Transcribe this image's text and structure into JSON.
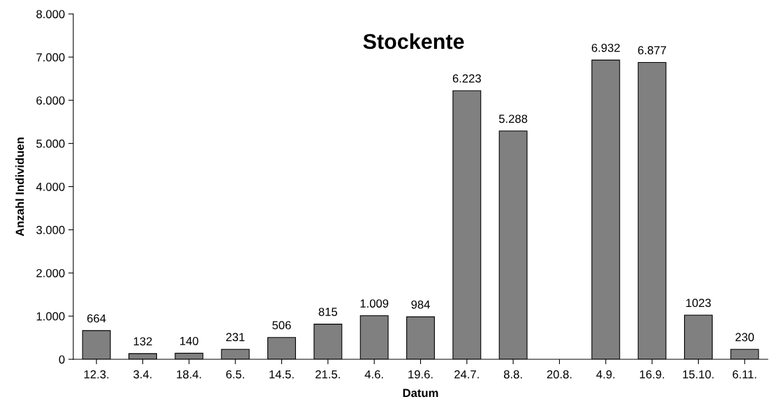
{
  "chart_data": {
    "type": "bar",
    "title": "Stockente",
    "xlabel": "Datum",
    "ylabel": "Anzahl Individuen",
    "categories": [
      "12.3.",
      "3.4.",
      "18.4.",
      "6.5.",
      "14.5.",
      "21.5.",
      "4.6.",
      "19.6.",
      "24.7.",
      "8.8.",
      "20.8.",
      "4.9.",
      "16.9.",
      "15.10.",
      "6.11."
    ],
    "values": [
      664,
      132,
      140,
      231,
      506,
      815,
      1009,
      984,
      6223,
      5288,
      null,
      6932,
      6877,
      1023,
      230
    ],
    "value_labels": [
      "664",
      "132",
      "140",
      "231",
      "506",
      "815",
      "1.009",
      "984",
      "6.223",
      "5.288",
      null,
      "6.932",
      "6.877",
      "1023",
      "230"
    ],
    "color": "#808080",
    "ylim": [
      0,
      8000
    ],
    "yticks": [
      0,
      {
        "value": 1000,
        "label": "1.000"
      },
      {
        "value": 2000,
        "label": "2.000"
      },
      {
        "value": 3000,
        "label": "3.000"
      },
      {
        "value": 4000,
        "label": "4.000"
      },
      {
        "value": 5000,
        "label": "5.000"
      },
      {
        "value": 6000,
        "label": "6.000"
      },
      {
        "value": 7000,
        "label": "7.000"
      },
      {
        "value": 8000,
        "label": "8.000"
      }
    ],
    "grid": false,
    "legend": false
  }
}
